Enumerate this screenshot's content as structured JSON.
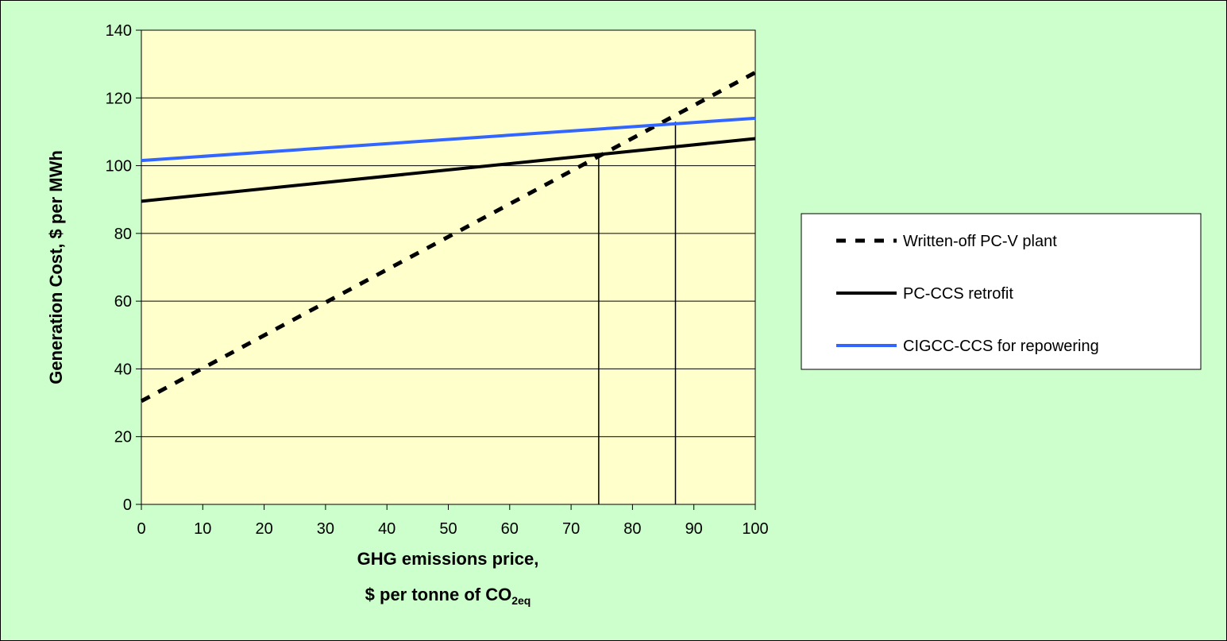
{
  "chart_data": {
    "type": "line",
    "xlabel": "GHG emissions price,",
    "xlabel_line2": "$ per tonne of CO",
    "xlabel_subscript": "2eq",
    "ylabel": "Generation Cost, $ per MWh",
    "xlim": [
      0,
      100
    ],
    "ylim": [
      0,
      140
    ],
    "x_ticks": [
      0,
      10,
      20,
      30,
      40,
      50,
      60,
      70,
      80,
      90,
      100
    ],
    "y_ticks": [
      0,
      20,
      40,
      60,
      80,
      100,
      120,
      140
    ],
    "grid": "horizontal",
    "legend_position": "right",
    "plot_background": "#ffffcc",
    "page_background": "#ccffcc",
    "series": [
      {
        "name": "Written-off PC-V plant",
        "x": [
          0,
          100
        ],
        "y": [
          30.5,
          127.5
        ],
        "color": "#000000",
        "style": "dashed"
      },
      {
        "name": "PC-CCS retrofit",
        "x": [
          0,
          100
        ],
        "y": [
          89.5,
          108
        ],
        "color": "#000000",
        "style": "solid"
      },
      {
        "name": "CIGCC-CCS for repowering",
        "x": [
          0,
          100
        ],
        "y": [
          101.5,
          114
        ],
        "color": "#3366ff",
        "style": "solid"
      }
    ],
    "crossover_markers": [
      {
        "x": 74.5,
        "y": 103.2
      },
      {
        "x": 87,
        "y": 113
      }
    ]
  }
}
